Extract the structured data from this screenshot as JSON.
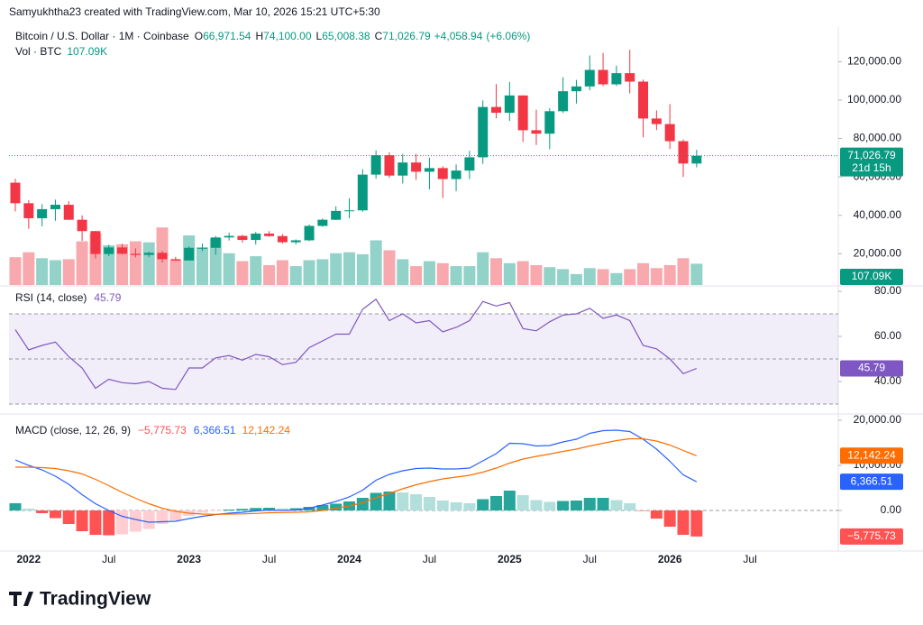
{
  "header": "Samyukhtha23 created with TradingView.com, Mar 10, 2026 15:21 UTC+5:30",
  "brand": "TradingView",
  "chart_data": [
    {
      "type": "candlestick",
      "title": "Bitcoin / U.S. Dollar · 1M · Coinbase",
      "categories": [
        null,
        "2022",
        null,
        null,
        null,
        null,
        null,
        "Jul",
        null,
        null,
        null,
        null,
        null,
        "2023",
        null,
        null,
        null,
        null,
        null,
        "Jul",
        null,
        null,
        null,
        null,
        null,
        "2024",
        null,
        null,
        null,
        null,
        null,
        "Jul",
        null,
        null,
        null,
        null,
        null,
        "2025",
        null,
        null,
        null,
        null,
        null,
        "Jul",
        null,
        null,
        null,
        null,
        null,
        "2026",
        null,
        null,
        null,
        null,
        null,
        "Jul"
      ],
      "open": [
        57000,
        46300,
        38500,
        43200,
        45500,
        37700,
        31800,
        19900,
        23300,
        20000,
        19400,
        20500,
        17200,
        16500,
        23100,
        23100,
        28500,
        29300,
        27200,
        30500,
        29200,
        26000,
        27000,
        34500,
        37700,
        42300,
        42600,
        61200,
        71300,
        60700,
        67500,
        62700,
        64600,
        58900,
        63300,
        70200,
        96400,
        93400,
        102400,
        84300,
        82500,
        94200,
        104600,
        107100,
        115700,
        108200,
        114000,
        109600,
        90400,
        87500,
        78600,
        66971.54,
        null,
        null,
        null,
        null
      ],
      "high": [
        59000,
        47900,
        45800,
        48200,
        47400,
        40000,
        31900,
        24700,
        25200,
        22800,
        21000,
        21500,
        18400,
        23900,
        25300,
        29200,
        31000,
        29900,
        31400,
        31800,
        30200,
        27500,
        35200,
        38400,
        44700,
        48900,
        64000,
        73800,
        72800,
        71900,
        72000,
        70000,
        65600,
        66500,
        73600,
        99800,
        108300,
        109400,
        102500,
        95000,
        95800,
        111900,
        110500,
        123200,
        124500,
        117900,
        126200,
        110700,
        94600,
        97900,
        79500,
        74100,
        null,
        null,
        null,
        null
      ],
      "low": [
        42000,
        33000,
        34300,
        37200,
        37600,
        26700,
        17600,
        18800,
        19600,
        18100,
        18200,
        15500,
        16300,
        16500,
        21400,
        19500,
        26900,
        25800,
        24800,
        28900,
        25400,
        24900,
        26600,
        34100,
        37600,
        38500,
        41900,
        59100,
        59600,
        56600,
        58500,
        53500,
        49000,
        52600,
        58900,
        66800,
        90500,
        89200,
        78200,
        76600,
        74400,
        93300,
        98200,
        105100,
        107300,
        107300,
        103500,
        80600,
        84400,
        74500,
        60000,
        65008.38,
        null,
        null,
        null,
        null
      ],
      "close": [
        46300,
        38500,
        43200,
        45500,
        37700,
        31800,
        19900,
        23300,
        20000,
        19400,
        20500,
        17200,
        16500,
        23100,
        23100,
        28500,
        29300,
        27200,
        30500,
        29200,
        26000,
        27000,
        34500,
        37700,
        42300,
        42600,
        61200,
        71300,
        60700,
        67500,
        62700,
        64600,
        58900,
        63300,
        70200,
        96400,
        93400,
        102400,
        84300,
        82500,
        94200,
        104600,
        107100,
        115700,
        108200,
        114000,
        109600,
        90400,
        87500,
        78600,
        66967.85,
        71026.79,
        null,
        null,
        null,
        null
      ],
      "volume": [
        140,
        165,
        135,
        125,
        130,
        220,
        260,
        200,
        205,
        220,
        215,
        290,
        125,
        250,
        190,
        235,
        160,
        120,
        145,
        100,
        125,
        95,
        125,
        130,
        160,
        165,
        155,
        225,
        175,
        130,
        95,
        120,
        110,
        95,
        95,
        165,
        135,
        110,
        120,
        100,
        90,
        80,
        55,
        85,
        80,
        60,
        80,
        110,
        85,
        100,
        135,
        107.09,
        null,
        null,
        null,
        null
      ],
      "volume_ylim": [
        0,
        1300
      ],
      "up_color": "#089981",
      "down_color": "#f23645",
      "volume_up_color": "#92d2c8",
      "volume_down_color": "#f7a9ad",
      "ylim": [
        3750,
        138000
      ],
      "yticks": [
        {
          "value": 20000,
          "label": "20,000.00"
        },
        {
          "value": 40000,
          "label": "40,000.00"
        },
        {
          "value": 60000,
          "label": "60,000.00"
        },
        {
          "value": 80000,
          "label": "80,000.00"
        },
        {
          "value": 100000,
          "label": "100,000.00"
        },
        {
          "value": 120000,
          "label": "120,000.00"
        }
      ],
      "legend_keys": [
        "O",
        "H",
        "L",
        "C"
      ],
      "legend": {
        "open": {
          "value": 66971.54,
          "label": "66,971.54"
        },
        "high": {
          "value": 74100,
          "label": "74,100.00"
        },
        "low": {
          "value": 65008.38,
          "label": "65,008.38"
        },
        "close": {
          "value": 71026.79,
          "label": "71,026.79"
        },
        "change": {
          "value": 4058.94,
          "label": "+4,058.94"
        },
        "change_pct": {
          "value": 6.06,
          "label": "(+6.06%)"
        }
      },
      "volume_title": "Vol · BTC",
      "volume_last": {
        "value": 107.09,
        "label": "107.09K"
      },
      "countdown": "21d 15h"
    },
    {
      "type": "line",
      "title": "RSI (14, close)",
      "color": "#7e57c2",
      "values": [
        63,
        54,
        56,
        57.5,
        51,
        46,
        37,
        41,
        39.5,
        39,
        40,
        37,
        36.5,
        46,
        46,
        50.5,
        51.5,
        49.5,
        52,
        51,
        47.5,
        48.5,
        55,
        58,
        61,
        61,
        72,
        76.5,
        67,
        70,
        66,
        67,
        62,
        64,
        67,
        75.5,
        73.5,
        75,
        63.5,
        62.5,
        66.5,
        69.5,
        70,
        72.5,
        68,
        69.5,
        67,
        56,
        54.5,
        50,
        43.5,
        45.79,
        null,
        null,
        null,
        null
      ],
      "bands": [
        70,
        50,
        30
      ],
      "ylim": [
        26,
        82
      ],
      "yticks": [
        {
          "value": 40,
          "label": "40.00"
        },
        {
          "value": 60,
          "label": "60.00"
        },
        {
          "value": 80,
          "label": "80.00"
        }
      ]
    },
    {
      "type": "macd",
      "title": "MACD (close, 12, 26, 9)",
      "histogram": {
        "values": [
          1600,
          400,
          -600,
          -1700,
          -3000,
          -4600,
          -5400,
          -5500,
          -5300,
          -4700,
          -4100,
          -3000,
          -2200,
          -1200,
          -500,
          -50,
          200,
          350,
          550,
          600,
          450,
          500,
          800,
          1200,
          1500,
          2000,
          2800,
          3900,
          4200,
          4000,
          3600,
          3000,
          2200,
          1800,
          1600,
          2500,
          3200,
          4400,
          3400,
          2300,
          1900,
          2100,
          2200,
          2800,
          2800,
          2300,
          1600,
          -100,
          -1800,
          -3600,
          -5400,
          -5775.73,
          null,
          null,
          null,
          null
        ],
        "last": {
          "value": -5775.73,
          "label": "−5,775.73"
        },
        "colors": [
          "#26a69a",
          "#b2dfdb",
          "#ffcdd2",
          "#ff5252"
        ]
      },
      "macd": {
        "color": "#2962ff",
        "values": [
          11200,
          10000,
          9000,
          7600,
          5800,
          3500,
          1500,
          0,
          -1300,
          -2000,
          -2600,
          -2500,
          -2400,
          -1800,
          -1300,
          -900,
          -600,
          -400,
          -100,
          100,
          0,
          100,
          500,
          1200,
          2000,
          3000,
          4500,
          6700,
          8000,
          8800,
          9300,
          9400,
          9200,
          9200,
          9400,
          11000,
          12600,
          14900,
          14800,
          14300,
          14400,
          15200,
          15800,
          17100,
          17700,
          17800,
          17500,
          15800,
          13600,
          10900,
          7900,
          6366.51,
          null,
          null,
          null,
          null
        ],
        "last": {
          "value": 6366.51,
          "label": "6,366.51"
        }
      },
      "signal": {
        "color": "#ff6d00",
        "values": [
          9600,
          9600,
          9500,
          9300,
          8800,
          8100,
          6900,
          5500,
          4000,
          2700,
          1500,
          500,
          -200,
          -600,
          -800,
          -850,
          -800,
          -750,
          -650,
          -500,
          -450,
          -400,
          -300,
          0,
          500,
          1000,
          1700,
          2800,
          3800,
          4800,
          5700,
          6400,
          7000,
          7400,
          7800,
          8500,
          9400,
          10500,
          11400,
          12000,
          12500,
          13100,
          13600,
          14300,
          14900,
          15500,
          15900,
          15900,
          15400,
          14500,
          13300,
          12142.24,
          null,
          null,
          null,
          null
        ],
        "last": {
          "value": 12142.24,
          "label": "12,142.24"
        }
      },
      "ylim": [
        -8800,
        21200
      ],
      "yticks": [
        {
          "value": 0,
          "label": "0.00"
        },
        {
          "value": 10000,
          "label": "10,000.00"
        },
        {
          "value": 20000,
          "label": "20,000.00"
        }
      ]
    }
  ]
}
